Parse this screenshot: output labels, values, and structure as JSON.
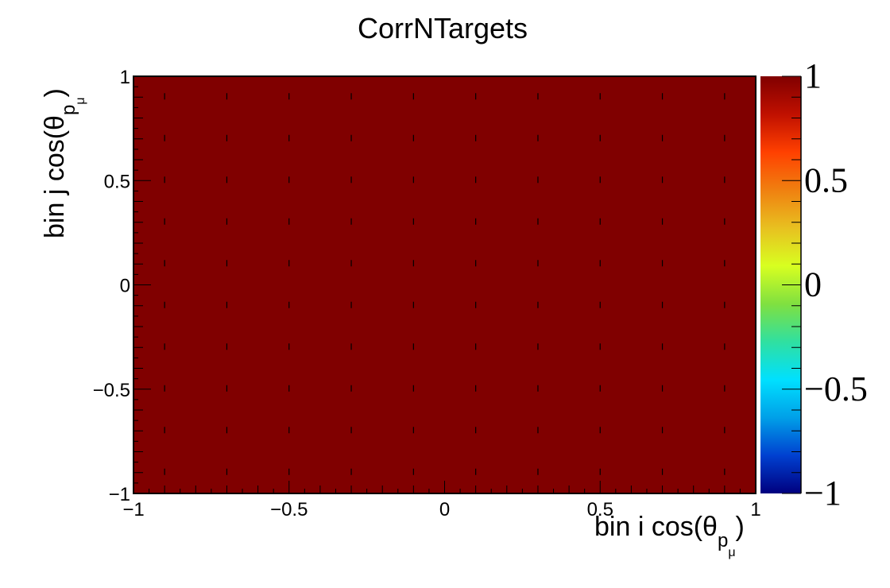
{
  "chart_data": {
    "type": "heatmap",
    "title": "CorrNTargets",
    "xlabel": {
      "main": "bin i cos(θ",
      "sub": "p",
      "subsub": "μ",
      "close": ")"
    },
    "ylabel": {
      "main": "bin j cos(θ",
      "sub": "p",
      "subsub": "μ",
      "close": ")"
    },
    "xlim": [
      -1,
      1
    ],
    "ylim": [
      -1,
      1
    ],
    "zlim": [
      -1,
      1
    ],
    "x_ticks": [
      "−1",
      "−0.5",
      "0",
      "0.5",
      "1"
    ],
    "y_ticks": [
      "−1",
      "−0.5",
      "0",
      "0.5",
      "1"
    ],
    "z_ticks": [
      "−1",
      "−0.5",
      "0",
      "0.5",
      "1"
    ],
    "x_tick_values": [
      -1,
      -0.5,
      0,
      0.5,
      1
    ],
    "y_tick_values": [
      -1,
      -0.5,
      0,
      0.5,
      1
    ],
    "z_tick_values": [
      -1,
      -0.5,
      0,
      0.5,
      1
    ],
    "x_bin_edges": [
      -1,
      1
    ],
    "y_bin_edges": [
      -1,
      1
    ],
    "values": [
      [
        1
      ]
    ],
    "colormap": [
      "#00007f",
      "#0040d0",
      "#00a0e8",
      "#00e0ff",
      "#30e0a0",
      "#80e040",
      "#d8ff20",
      "#e8c020",
      "#f08010",
      "#ff4000",
      "#c01000",
      "#800000"
    ],
    "cell_color": "#800000",
    "grid": false,
    "legend": "colorbar-right"
  }
}
